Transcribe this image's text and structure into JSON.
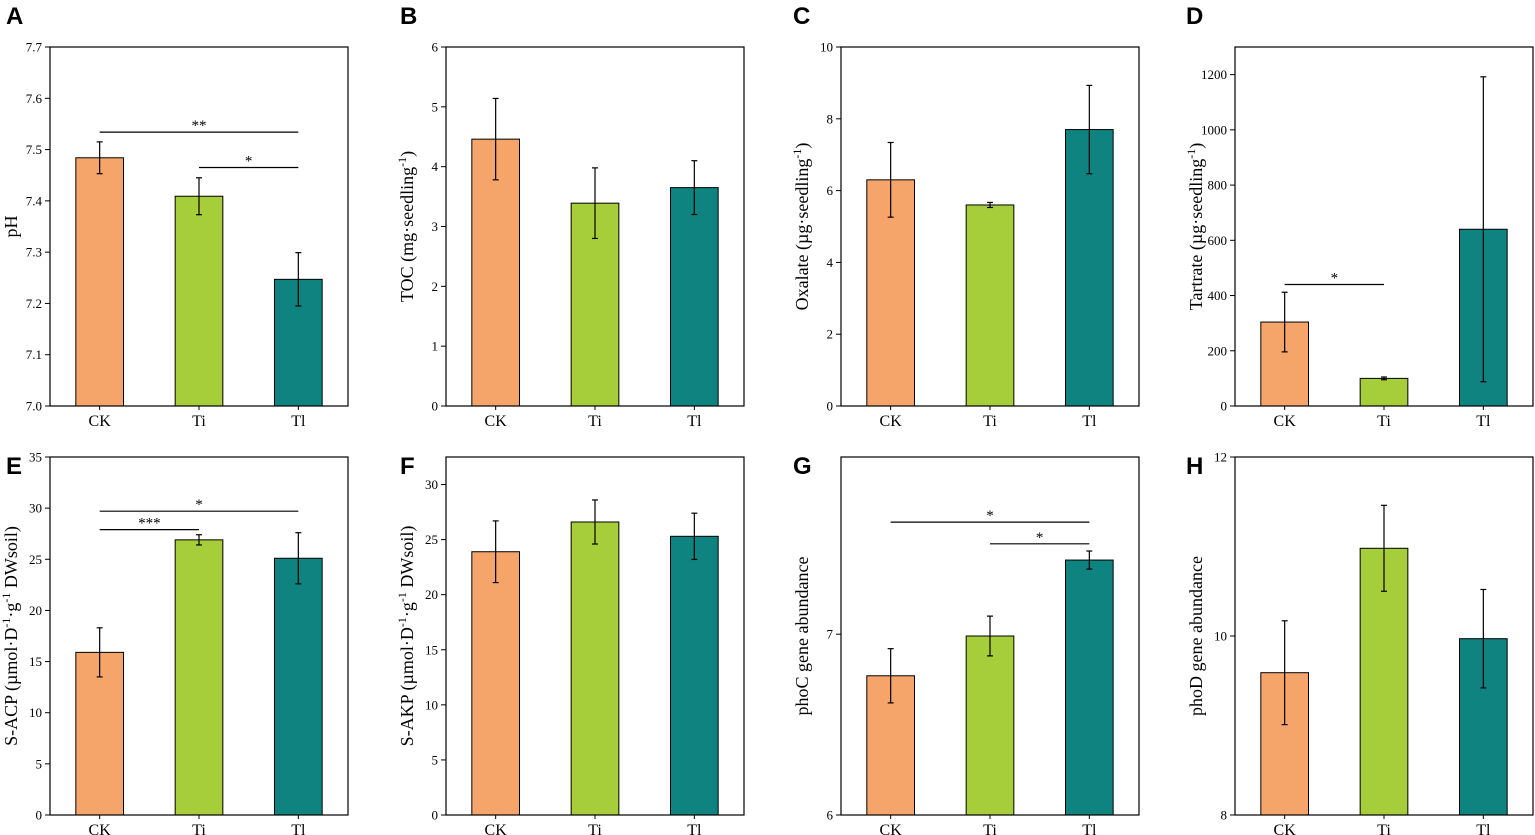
{
  "colors": {
    "CK": "#F6A56A",
    "Ti": "#A6CE3A",
    "Tl": "#0E8380"
  },
  "chart_data": [
    {
      "type": "bar",
      "panel": "A",
      "categories": [
        "CK",
        "Ti",
        "Tl"
      ],
      "values": [
        7.484,
        7.409,
        7.247
      ],
      "errors": [
        0.031,
        0.036,
        0.052
      ],
      "ylabel": "pH",
      "ylim": [
        7.0,
        7.7
      ],
      "yticks": [
        7.0,
        7.1,
        7.2,
        7.3,
        7.4,
        7.5,
        7.6,
        7.7
      ],
      "tick_decimals": 1,
      "significance": [
        {
          "from": 0,
          "to": 2,
          "label": "**",
          "y": 7.534
        },
        {
          "from": 1,
          "to": 2,
          "label": "*",
          "y": 7.465
        }
      ]
    },
    {
      "type": "bar",
      "panel": "B",
      "categories": [
        "CK",
        "Ti",
        "Tl"
      ],
      "values": [
        4.46,
        3.39,
        3.65
      ],
      "errors": [
        0.68,
        0.59,
        0.45
      ],
      "ylabel": "TOC (mg·seedling",
      "ylabel_sup": "-1",
      "ylabel_end": ")",
      "ylim": [
        0,
        6
      ],
      "yticks": [
        0,
        1,
        2,
        3,
        4,
        5,
        6
      ],
      "tick_decimals": 0,
      "significance": []
    },
    {
      "type": "bar",
      "panel": "C",
      "categories": [
        "CK",
        "Ti",
        "Tl"
      ],
      "values": [
        6.3,
        5.6,
        7.7
      ],
      "errors": [
        1.04,
        0.07,
        1.23
      ],
      "ylabel": "Oxalate (µg·seedling",
      "ylabel_sup": "-1",
      "ylabel_end": ")",
      "ylim": [
        0,
        10
      ],
      "yticks": [
        0,
        2,
        4,
        6,
        8,
        10
      ],
      "tick_decimals": 0,
      "significance": []
    },
    {
      "type": "bar",
      "panel": "D",
      "categories": [
        "CK",
        "Ti",
        "Tl"
      ],
      "values": [
        304,
        100,
        640
      ],
      "errors": [
        108,
        5,
        552
      ],
      "ylabel": "Tartrate (µg·seedling",
      "ylabel_sup": "-1",
      "ylabel_end": ")",
      "ylim": [
        0,
        1300
      ],
      "yticks": [
        0,
        200,
        400,
        600,
        800,
        1000,
        1200
      ],
      "tick_decimals": 0,
      "significance": [
        {
          "from": 0,
          "to": 1,
          "label": "*",
          "y": 440
        }
      ]
    },
    {
      "type": "bar",
      "panel": "E",
      "categories": [
        "CK",
        "Ti",
        "Tl"
      ],
      "values": [
        15.9,
        26.9,
        25.1
      ],
      "errors": [
        2.4,
        0.5,
        2.5
      ],
      "ylabel": "S-ACP (µmol·D",
      "ylabel_sup": "-1",
      "ylabel_mid": "·g",
      "ylabel_sup2": "-1",
      "ylabel_end": " DWsoil)",
      "ylim": [
        0,
        35
      ],
      "yticks": [
        0,
        5,
        10,
        15,
        20,
        25,
        30,
        35
      ],
      "tick_decimals": 0,
      "significance": [
        {
          "from": 0,
          "to": 2,
          "label": "*",
          "y": 29.7
        },
        {
          "from": 0,
          "to": 1,
          "label": "***",
          "y": 27.9
        }
      ]
    },
    {
      "type": "bar",
      "panel": "F",
      "categories": [
        "CK",
        "Ti",
        "Tl"
      ],
      "values": [
        23.9,
        26.6,
        25.3
      ],
      "errors": [
        2.8,
        2.0,
        2.1
      ],
      "ylabel": "S-AKP (µmol·D",
      "ylabel_sup": "-1",
      "ylabel_mid": "·g",
      "ylabel_sup2": "-1",
      "ylabel_end": " DWsoil)",
      "ylim": [
        0,
        32.5
      ],
      "yticks": [
        0,
        5,
        10,
        15,
        20,
        25,
        30
      ],
      "tick_decimals": 0,
      "significance": []
    },
    {
      "type": "bar",
      "panel": "G",
      "categories": [
        "CK",
        "Ti",
        "Tl"
      ],
      "values": [
        6.77,
        6.99,
        7.41
      ],
      "errors": [
        0.15,
        0.11,
        0.05
      ],
      "ylabel": "phoC gene abundance",
      "ylim": [
        6,
        7.98
      ],
      "yticks": [
        6,
        7
      ],
      "tick_decimals": 0,
      "significance": [
        {
          "from": 0,
          "to": 2,
          "label": "*",
          "y": 7.62
        },
        {
          "from": 1,
          "to": 2,
          "label": "*",
          "y": 7.5
        }
      ]
    },
    {
      "type": "bar",
      "panel": "H",
      "categories": [
        "CK",
        "Ti",
        "Tl"
      ],
      "values": [
        9.59,
        10.98,
        9.97
      ],
      "errors": [
        0.58,
        0.48,
        0.55
      ],
      "ylabel": "phoD gene abundance",
      "ylim": [
        8,
        12
      ],
      "yticks": [
        8,
        10,
        12
      ],
      "tick_decimals": 0,
      "significance": []
    }
  ]
}
